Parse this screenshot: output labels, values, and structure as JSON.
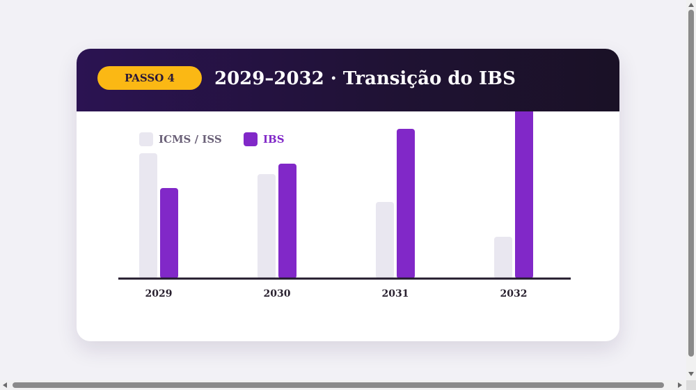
{
  "header": {
    "step_label": "PASSO 4",
    "title": "2029–2032 · Transição do IBS"
  },
  "colors": {
    "icms_iss": "#e9e7f0",
    "ibs": "#8128c8",
    "legend_icms_text": "#6b6178",
    "legend_ibs_text": "#8128c8",
    "axis": "#231b2c"
  },
  "chart_data": {
    "type": "bar",
    "categories": [
      "2029",
      "2030",
      "2031",
      "2032"
    ],
    "series": [
      {
        "name": "ICMS / ISS",
        "values": [
          72,
          60,
          44,
          24
        ]
      },
      {
        "name": "IBS",
        "values": [
          52,
          66,
          86,
          100
        ]
      }
    ],
    "title": "",
    "xlabel": "",
    "ylabel": "",
    "ylim": [
      0,
      100
    ],
    "grid": false,
    "legend": "top-left"
  }
}
